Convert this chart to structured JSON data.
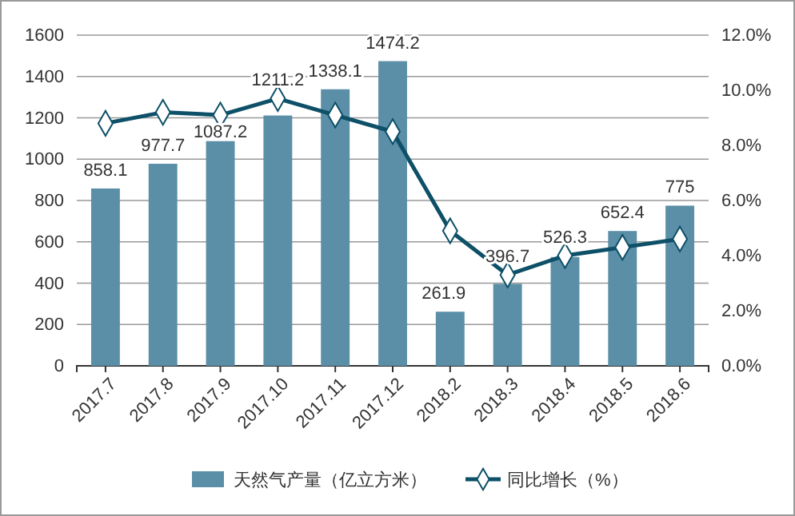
{
  "chart_data": {
    "type": "bar",
    "categories": [
      "2017.7",
      "2017.8",
      "2017.9",
      "2017.10",
      "2017.11",
      "2017.12",
      "2018.2",
      "2018.3",
      "2018.4",
      "2018.5",
      "2018.6"
    ],
    "series": [
      {
        "name": "天然气产量（亿立方米）",
        "color": "#5b8fa8",
        "values": [
          858.1,
          977.7,
          1087.2,
          1211.2,
          1338.1,
          1474.2,
          261.9,
          396.7,
          526.3,
          652.4,
          775
        ],
        "value_labels": [
          "858.1",
          "977.7",
          "1087.2",
          "1211.2",
          "1338.1",
          "1474.2",
          "261.9",
          "396.7",
          "526.3",
          "652.4",
          "775"
        ]
      },
      {
        "name": "同比增长（%）",
        "type": "line",
        "axis": "y2",
        "color": "#0d5068",
        "marker": "diamond",
        "values": [
          8.8,
          9.2,
          9.1,
          9.7,
          9.1,
          8.5,
          4.9,
          3.3,
          4.0,
          4.3,
          4.6
        ]
      }
    ],
    "ylim": [
      0,
      1600
    ],
    "yticks": [
      0,
      200,
      400,
      600,
      800,
      1000,
      1200,
      1400,
      1600
    ],
    "y2lim": [
      0,
      12
    ],
    "y2ticks": [
      {
        "value": 0,
        "label": "0.0%"
      },
      {
        "value": 2,
        "label": "2.0%"
      },
      {
        "value": 4,
        "label": "4.0%"
      },
      {
        "value": 6,
        "label": "6.0%"
      },
      {
        "value": 8,
        "label": "8.0%"
      },
      {
        "value": 10,
        "label": "10.0%"
      },
      {
        "value": 12,
        "label": "12.0%"
      }
    ],
    "grid": "y",
    "legend": "bottom"
  }
}
